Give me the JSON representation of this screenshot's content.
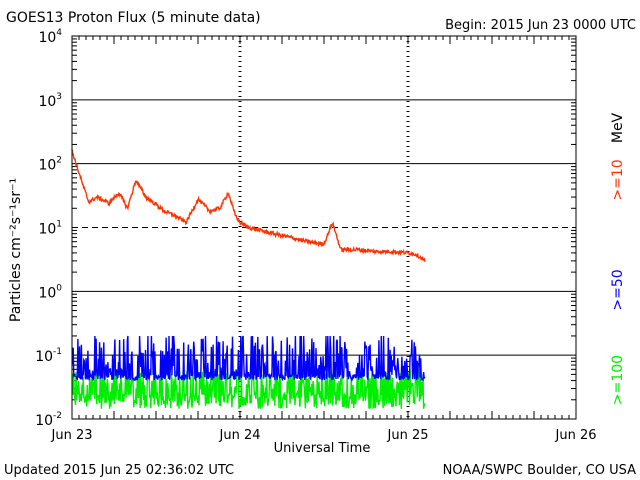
{
  "chart_data": {
    "type": "line",
    "title": "GOES13 Proton Flux (5 minute data)",
    "begin": "Begin: 2015 Jun 23 0000 UTC",
    "updated": "Updated 2015 Jun 25 02:36:02 UTC",
    "credit": "NOAA/SWPC Boulder, CO USA",
    "xlabel": "Universal Time",
    "ylabel": "Particles cm⁻²s⁻¹sr⁻¹",
    "x_unit": "days since 2015 Jun 23 0000 UTC",
    "xlim": [
      0,
      3
    ],
    "ylim_log10": [
      -2,
      4
    ],
    "yscale": "log",
    "x_ticks": [
      {
        "x": 0,
        "label": "Jun 23"
      },
      {
        "x": 1,
        "label": "Jun 24"
      },
      {
        "x": 2,
        "label": "Jun 25"
      },
      {
        "x": 3,
        "label": "Jun 26"
      }
    ],
    "y_ticks": [
      {
        "exp": 4,
        "base": "10",
        "sup": "4"
      },
      {
        "exp": 3,
        "base": "10",
        "sup": "3"
      },
      {
        "exp": 2,
        "base": "10",
        "sup": "2"
      },
      {
        "exp": 1,
        "base": "10",
        "sup": "1"
      },
      {
        "exp": 0,
        "base": "10",
        "sup": "0"
      },
      {
        "exp": -1,
        "base": "10",
        "sup": "-1"
      },
      {
        "exp": -2,
        "base": "10",
        "sup": "-2"
      }
    ],
    "reference_line_log10": 1,
    "series": [
      {
        "name": ">=10 MeV",
        "legend": ">=10",
        "unit": "MeV",
        "color": "#ff3300",
        "x": [
          0.0,
          0.03,
          0.06,
          0.1,
          0.15,
          0.22,
          0.28,
          0.33,
          0.38,
          0.44,
          0.48,
          0.55,
          0.62,
          0.68,
          0.75,
          0.82,
          0.88,
          0.93,
          0.97,
          1.0,
          1.05,
          1.12,
          1.2,
          1.3,
          1.4,
          1.5,
          1.55,
          1.6,
          1.7,
          1.8,
          1.9,
          2.0,
          2.05,
          2.1
        ],
        "y": [
          160,
          90,
          50,
          25,
          30,
          24,
          35,
          20,
          55,
          30,
          25,
          18,
          15,
          12,
          28,
          18,
          20,
          35,
          16,
          12,
          10,
          9,
          8,
          7,
          6,
          5.5,
          12,
          4.5,
          4.5,
          4.2,
          4.2,
          4,
          3.8,
          3.0
        ]
      },
      {
        "name": ">=50 MeV",
        "legend": ">=50",
        "unit": "",
        "color": "#0000ff",
        "x_start": 0.0,
        "x_end": 2.1,
        "baseline": 0.045,
        "spike_max": 0.2
      },
      {
        "name": ">=100 MeV",
        "legend": ">=100",
        "unit": "",
        "color": "#00ee00",
        "x_start": 0.0,
        "x_end": 2.1,
        "baseline": 0.018,
        "spike_max": 0.06
      }
    ]
  }
}
